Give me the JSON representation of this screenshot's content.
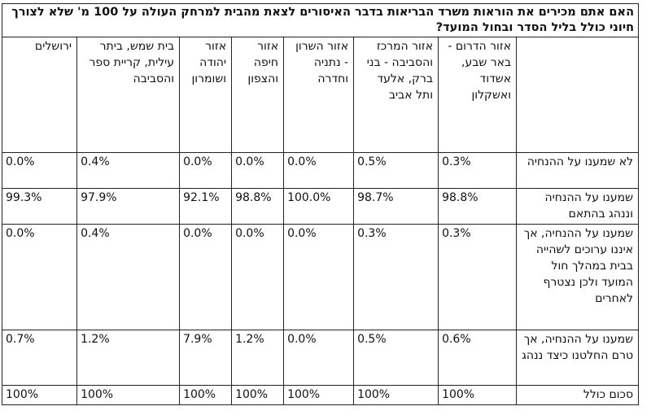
{
  "title": "האם אתם מכירים את הוראות משרד הבריאות בדבר האיסורים לצאת מהבית למרחק העולה על 100 מ' שלא לצורך חיוני כולל בליל הסדר ובחול המועד?",
  "columns": [
    "אזור הדרום - באר שבע, אשדוד ואשקלון",
    "אזור המרכז והסביבה - בני ברק, אלעד ותל אביב",
    "אזור השרון - נתניה וחדרה",
    "אזור חיפה והצפון",
    "אזור יהודה ושומרון",
    "בית שמש, ביתר עילית, קריית ספר והסביבה",
    "ירושלים"
  ],
  "rows": [
    {
      "label": "לא שמענו על ההנחיה",
      "values": [
        "0.3%",
        "0.5%",
        "0.0%",
        "0.0%",
        "0.0%",
        "0.4%",
        "0.0%"
      ]
    },
    {
      "label": "שמענו על ההנחיה וננהג בהתאם",
      "values": [
        "98.8%",
        "98.7%",
        "100.0%",
        "98.8%",
        "92.1%",
        "97.9%",
        "99.3%"
      ]
    },
    {
      "label": "שמענו על ההנחיה, אך איננו ערוכים לשהייה בבית במהלך חול המועד ולכן נצטרף לאחרים",
      "values": [
        "0.3%",
        "0.3%",
        "0.0%",
        "0.0%",
        "0.0%",
        "0.4%",
        "0.0%"
      ]
    },
    {
      "label": "שמענו על ההנחיה, אך טרם החלטנו כיצד ננהג",
      "values": [
        "0.6%",
        "0.5%",
        "0.0%",
        "1.2%",
        "7.9%",
        "1.2%",
        "0.7%"
      ]
    },
    {
      "label": "סכום כולל",
      "values": [
        "100%",
        "100%",
        "100%",
        "100%",
        "100%",
        "100%",
        "100%"
      ]
    }
  ]
}
